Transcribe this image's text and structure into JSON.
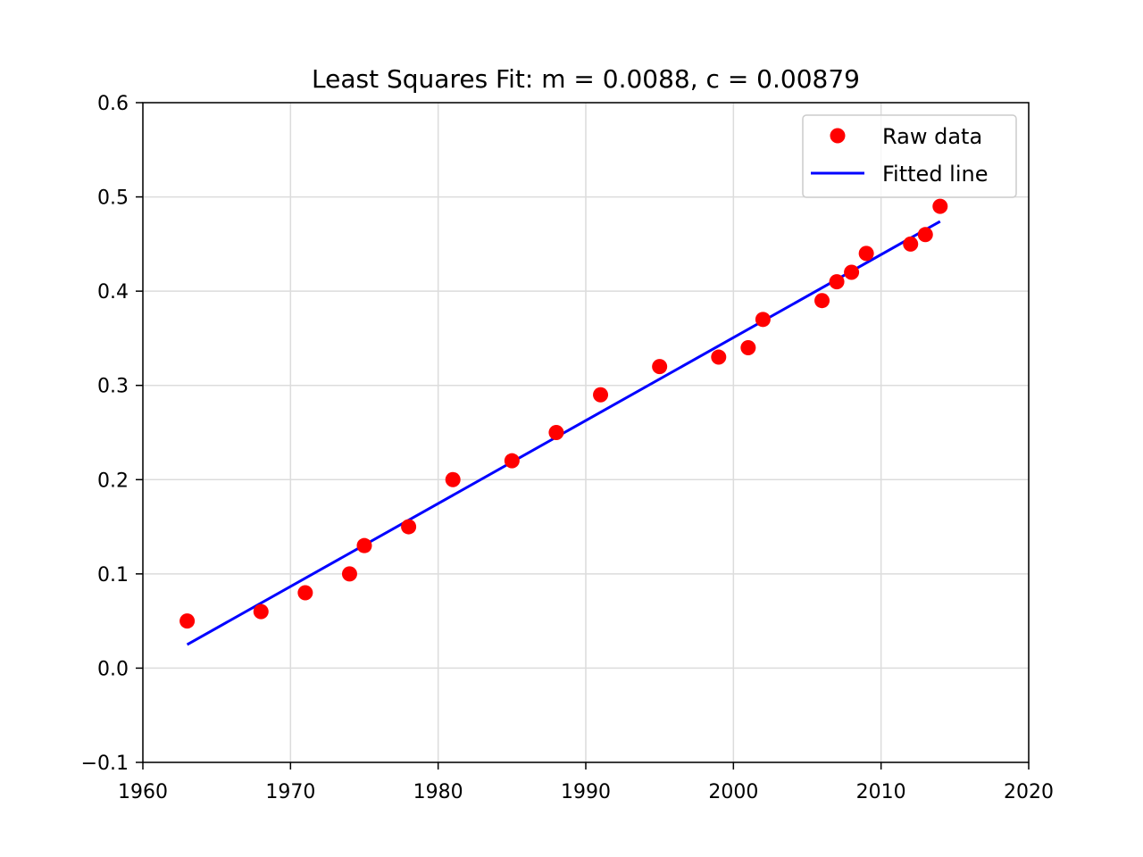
{
  "chart_data": {
    "type": "scatter",
    "title": "Least Squares Fit: m = 0.0088, c = 0.00879",
    "xlabel": "",
    "ylabel": "",
    "xlim": [
      1960,
      2020
    ],
    "ylim": [
      -0.1,
      0.6
    ],
    "x_ticks": [
      1960,
      1970,
      1980,
      1990,
      2000,
      2010,
      2020
    ],
    "y_ticks": [
      -0.1,
      0.0,
      0.1,
      0.2,
      0.3,
      0.4,
      0.5,
      0.6
    ],
    "x_tick_labels": [
      "1960",
      "1970",
      "1980",
      "1990",
      "2000",
      "2010",
      "2020"
    ],
    "y_tick_labels": [
      "−0.1",
      "0.0",
      "0.1",
      "0.2",
      "0.3",
      "0.4",
      "0.5",
      "0.6"
    ],
    "grid": true,
    "legend_position": "top-right",
    "series": [
      {
        "name": "Raw data",
        "kind": "scatter",
        "color": "#ff0000",
        "x": [
          1963,
          1968,
          1971,
          1974,
          1975,
          1978,
          1981,
          1985,
          1988,
          1991,
          1995,
          1999,
          2001,
          2002,
          2006,
          2007,
          2008,
          2009,
          2012,
          2013,
          2014
        ],
        "y": [
          0.05,
          0.06,
          0.08,
          0.1,
          0.13,
          0.15,
          0.2,
          0.22,
          0.25,
          0.29,
          0.32,
          0.33,
          0.34,
          0.37,
          0.39,
          0.41,
          0.42,
          0.44,
          0.45,
          0.46,
          0.49
        ]
      },
      {
        "name": "Fitted line",
        "kind": "line",
        "color": "#0000ff",
        "x": [
          1963,
          2014
        ],
        "y": [
          0.025,
          0.474
        ]
      }
    ]
  }
}
